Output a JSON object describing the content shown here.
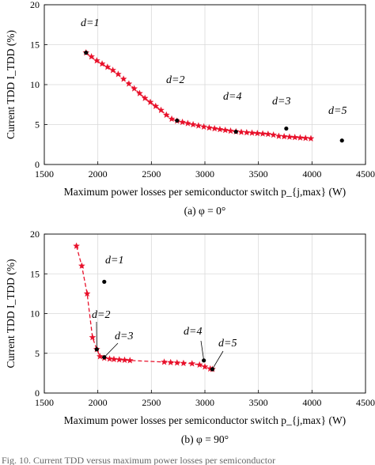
{
  "chart_data": [
    {
      "type": "line",
      "caption": "(a)  φ = 0°",
      "xlabel": "Maximum power losses per semiconductor switch p_{j,max} (W)",
      "ylabel": "Current TDD I_TDD (%)",
      "xlim": [
        1500,
        4500
      ],
      "ylim": [
        0,
        20
      ],
      "xticks": [
        "1500",
        "2000",
        "2500",
        "3000",
        "3500",
        "4000",
        "4500"
      ],
      "yticks": [
        "0",
        "5",
        "10",
        "15",
        "20"
      ],
      "grid": true,
      "series": [
        {
          "style": "red dashed line with star markers",
          "color": "#e8102a",
          "x": [
            1890,
            1940,
            1990,
            2040,
            2090,
            2140,
            2190,
            2240,
            2290,
            2340,
            2390,
            2440,
            2490,
            2540,
            2590,
            2640,
            2690,
            2740,
            2790,
            2840,
            2890,
            2940,
            2990,
            3040,
            3090,
            3140,
            3190,
            3240,
            3290,
            3340,
            3390,
            3440,
            3490,
            3540,
            3590,
            3640,
            3690,
            3740,
            3790,
            3840,
            3890,
            3940,
            3990
          ],
          "y": [
            14.0,
            13.5,
            13.0,
            12.6,
            12.2,
            11.8,
            11.3,
            10.7,
            10.1,
            9.5,
            8.9,
            8.3,
            7.8,
            7.3,
            6.8,
            6.2,
            5.7,
            5.45,
            5.3,
            5.15,
            5.0,
            4.85,
            4.72,
            4.6,
            4.5,
            4.4,
            4.3,
            4.2,
            4.12,
            4.05,
            4.0,
            3.95,
            3.9,
            3.85,
            3.8,
            3.7,
            3.55,
            3.5,
            3.45,
            3.4,
            3.35,
            3.3,
            3.25
          ]
        },
        {
          "style": "black points",
          "points": [
            {
              "label": "d=1",
              "x": 1890,
              "y": 14.0
            },
            {
              "label": "d=2",
              "x": 2740,
              "y": 5.5
            },
            {
              "label": "d=4",
              "x": 3290,
              "y": 4.1
            },
            {
              "label": "d=3",
              "x": 3760,
              "y": 4.5
            },
            {
              "label": "d=5",
              "x": 4280,
              "y": 3.0
            }
          ]
        }
      ]
    },
    {
      "type": "line",
      "caption": "(b)  φ = 90°",
      "xlabel": "Maximum power losses per semiconductor switch p_{j,max} (W)",
      "ylabel": "Current TDD I_TDD (%)",
      "xlim": [
        1500,
        4500
      ],
      "ylim": [
        0,
        20
      ],
      "xticks": [
        "1500",
        "2000",
        "2500",
        "3000",
        "3500",
        "4000",
        "4500"
      ],
      "yticks": [
        "0",
        "5",
        "10",
        "15",
        "20"
      ],
      "grid": true,
      "series": [
        {
          "style": "red dashed line with star markers",
          "color": "#e8102a",
          "x": [
            1800,
            1850,
            1900,
            1950,
            1990,
            2020,
            2060,
            2110,
            2150,
            2200,
            2250,
            2300,
            2620,
            2680,
            2740,
            2800,
            2880,
            2950,
            3000,
            3050,
            3070
          ],
          "y": [
            18.5,
            16.0,
            12.5,
            7.0,
            5.5,
            4.6,
            4.4,
            4.3,
            4.25,
            4.2,
            4.15,
            4.1,
            3.9,
            3.85,
            3.8,
            3.75,
            3.7,
            3.55,
            3.3,
            3.05,
            3.0
          ]
        },
        {
          "style": "black points",
          "points": [
            {
              "label": "d=1",
              "x": 2060,
              "y": 14.0
            },
            {
              "label": "d=2",
              "x": 1990,
              "y": 5.5
            },
            {
              "label": "d=3",
              "x": 2060,
              "y": 4.5
            },
            {
              "label": "d=4",
              "x": 2990,
              "y": 4.1
            },
            {
              "label": "d=5",
              "x": 3070,
              "y": 3.0
            }
          ]
        }
      ]
    }
  ],
  "footer_text": "Fig. 10.  Current TDD versus maximum power losses per semiconductor"
}
